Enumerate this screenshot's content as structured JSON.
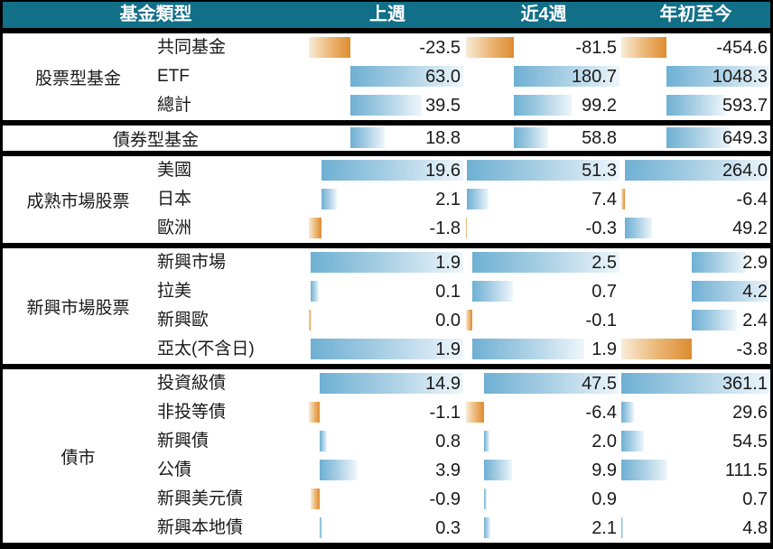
{
  "style": {
    "header_bg": "#126F88",
    "header_text": "#FFFFFF",
    "border": "#000000",
    "text": "#1A1A1A",
    "bar_positive_blue": "#6FB0D3",
    "bar_negative_orange": "#DE8B30"
  },
  "chart_data": {
    "type": "table",
    "title": "",
    "columns": [
      "基金類型",
      "上週",
      "近4週",
      "年初至今"
    ],
    "legend": "in-cell data bars: blue = inflow (positive), orange = outflow (negative), scaled per section per column",
    "groups": [
      {
        "group": "股票型基金",
        "scale": 0,
        "merged": false,
        "rows": [
          {
            "label": "共同基金",
            "display": [
              "-23.5",
              "-81.5",
              "-454.6"
            ],
            "bar": [
              -23.5,
              -81.5,
              -454.6
            ]
          },
          {
            "label": "ETF",
            "display": [
              "63.0",
              "180.7",
              "1048.3"
            ],
            "bar": [
              63.0,
              180.7,
              1048.3
            ]
          },
          {
            "label": "總計",
            "display": [
              "39.5",
              "99.2",
              "593.7"
            ],
            "bar": [
              39.5,
              99.2,
              593.7
            ]
          }
        ]
      },
      {
        "group": "債券型基金",
        "scale": 0,
        "merged": true,
        "rows": [
          {
            "label": "",
            "display": [
              "18.8",
              "58.8",
              "649.3"
            ],
            "bar": [
              18.8,
              58.8,
              649.3
            ]
          }
        ]
      },
      {
        "group": "成熟市場股票",
        "scale": 1,
        "merged": false,
        "rows": [
          {
            "label": "美國",
            "display": [
              "19.6",
              "51.3",
              "264.0"
            ],
            "bar": [
              19.6,
              51.3,
              264.0
            ]
          },
          {
            "label": "日本",
            "display": [
              "2.1",
              "7.4",
              "-6.4"
            ],
            "bar": [
              2.1,
              7.4,
              -6.4
            ]
          },
          {
            "label": "歐洲",
            "display": [
              "-1.8",
              "-0.3",
              "49.2"
            ],
            "bar": [
              -1.8,
              -0.3,
              49.2
            ]
          }
        ]
      },
      {
        "group": "新興市場股票",
        "scale": 2,
        "merged": false,
        "rows": [
          {
            "label": "新興市場",
            "display": [
              "1.9",
              "2.5",
              "2.9"
            ],
            "bar": [
              1.9,
              2.5,
              2.9
            ]
          },
          {
            "label": "拉美",
            "display": [
              "0.1",
              "0.7",
              "4.2"
            ],
            "bar": [
              0.1,
              0.7,
              4.2
            ]
          },
          {
            "label": "新興歐",
            "display": [
              "0.0",
              "-0.1",
              "2.4"
            ],
            "bar": [
              -0.02,
              -0.1,
              2.4
            ]
          },
          {
            "label": "亞太(不含日)",
            "display": [
              "1.9",
              "1.9",
              "-3.8"
            ],
            "bar": [
              1.9,
              1.9,
              -3.8
            ]
          }
        ]
      },
      {
        "group": "債市",
        "scale": 3,
        "merged": false,
        "rows": [
          {
            "label": "投資級債",
            "display": [
              "14.9",
              "47.5",
              "361.1"
            ],
            "bar": [
              14.9,
              47.5,
              361.1
            ]
          },
          {
            "label": "非投等債",
            "display": [
              "-1.1",
              "-6.4",
              "29.6"
            ],
            "bar": [
              -1.1,
              -6.4,
              29.6
            ]
          },
          {
            "label": "新興債",
            "display": [
              "0.8",
              "2.0",
              "54.5"
            ],
            "bar": [
              0.8,
              2.0,
              54.5
            ]
          },
          {
            "label": "公債",
            "display": [
              "3.9",
              "9.9",
              "111.5"
            ],
            "bar": [
              3.9,
              9.9,
              111.5
            ]
          },
          {
            "label": "新興美元債",
            "display": [
              "-0.9",
              "0.9",
              "0.7"
            ],
            "bar": [
              -0.9,
              0.9,
              0.7
            ]
          },
          {
            "label": "新興本地債",
            "display": [
              "0.3",
              "2.1",
              "4.8"
            ],
            "bar": [
              0.3,
              2.1,
              4.8
            ]
          }
        ]
      }
    ]
  }
}
